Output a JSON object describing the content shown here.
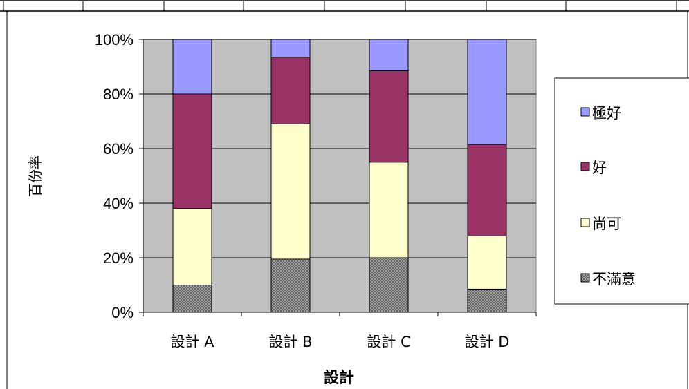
{
  "chart_data": {
    "type": "bar",
    "stacked": "percent",
    "categories": [
      "設計 A",
      "設計 B",
      "設計 C",
      "設計 D"
    ],
    "series": [
      {
        "name": "不滿意",
        "values": [
          10,
          19.5,
          20,
          8.5
        ],
        "color": "#b0b0b0",
        "pattern": "crosshatch"
      },
      {
        "name": "尚可",
        "values": [
          28,
          49.5,
          35,
          19.5
        ],
        "color": "#ffffcc"
      },
      {
        "name": "好",
        "values": [
          42,
          24.5,
          33.5,
          33.5
        ],
        "color": "#993366"
      },
      {
        "name": "極好",
        "values": [
          20,
          6.5,
          11.5,
          38.5
        ],
        "color": "#9999ff"
      }
    ],
    "yticks": [
      "0%",
      "20%",
      "40%",
      "60%",
      "80%",
      "100%"
    ],
    "ylim": [
      0,
      100
    ],
    "xlabel": "設計",
    "ylabel": "百份率",
    "grid": true,
    "plot_background": "#c0c0c0",
    "legend_position": "right",
    "legend_order": [
      "極好",
      "好",
      "尚可",
      "不滿意"
    ]
  }
}
